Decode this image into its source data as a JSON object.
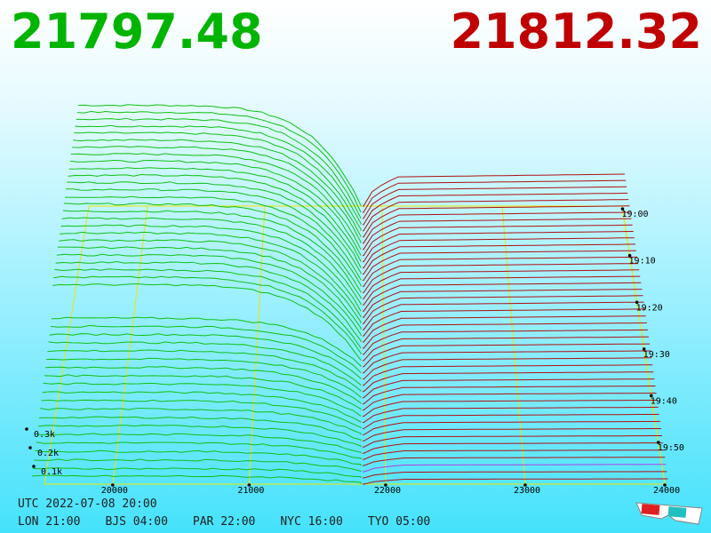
{
  "header": {
    "bid": "21797.48",
    "ask": "21812.32"
  },
  "price_axis": [
    "20000",
    "21000",
    "22000",
    "23000",
    "24000"
  ],
  "volume_axis": [
    "0.3k",
    "0.2k",
    "0.1k"
  ],
  "time_axis": [
    "19:00",
    "19:10",
    "19:20",
    "19:30",
    "19:40",
    "19:50"
  ],
  "footer": {
    "utc": "UTC 2022-07-08 20:00",
    "zones": [
      "LON 21:00",
      "BJS 04:00",
      "PAR 22:00",
      "NYC 16:00",
      "TYO 05:00"
    ]
  }
}
